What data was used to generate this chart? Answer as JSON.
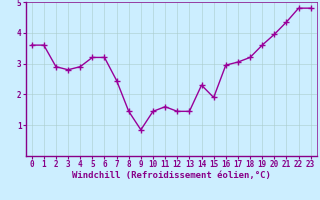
{
  "x": [
    0,
    1,
    2,
    3,
    4,
    5,
    6,
    7,
    8,
    9,
    10,
    11,
    12,
    13,
    14,
    15,
    16,
    17,
    18,
    19,
    20,
    21,
    22,
    23
  ],
  "y": [
    3.6,
    3.6,
    2.9,
    2.8,
    2.9,
    3.2,
    3.2,
    2.45,
    1.45,
    0.85,
    1.45,
    1.6,
    1.45,
    1.45,
    2.3,
    1.9,
    2.95,
    3.05,
    3.2,
    3.6,
    3.95,
    4.35,
    4.8,
    4.8
  ],
  "line_color": "#990099",
  "marker": "+",
  "marker_size": 4,
  "line_width": 1.0,
  "bg_color": "#cceeff",
  "grid_color": "#aacccc",
  "axis_color": "#880088",
  "tick_color": "#880088",
  "xlabel": "Windchill (Refroidissement éolien,°C)",
  "xlim": [
    -0.5,
    23.5
  ],
  "ylim": [
    0,
    5
  ],
  "yticks": [
    1,
    2,
    3,
    4,
    5
  ],
  "xtick_labels": [
    "0",
    "1",
    "2",
    "3",
    "4",
    "5",
    "6",
    "7",
    "8",
    "9",
    "10",
    "11",
    "12",
    "13",
    "14",
    "15",
    "16",
    "17",
    "18",
    "19",
    "20",
    "21",
    "22",
    "23"
  ],
  "tick_fontsize": 5.5,
  "label_fontsize": 6.5
}
